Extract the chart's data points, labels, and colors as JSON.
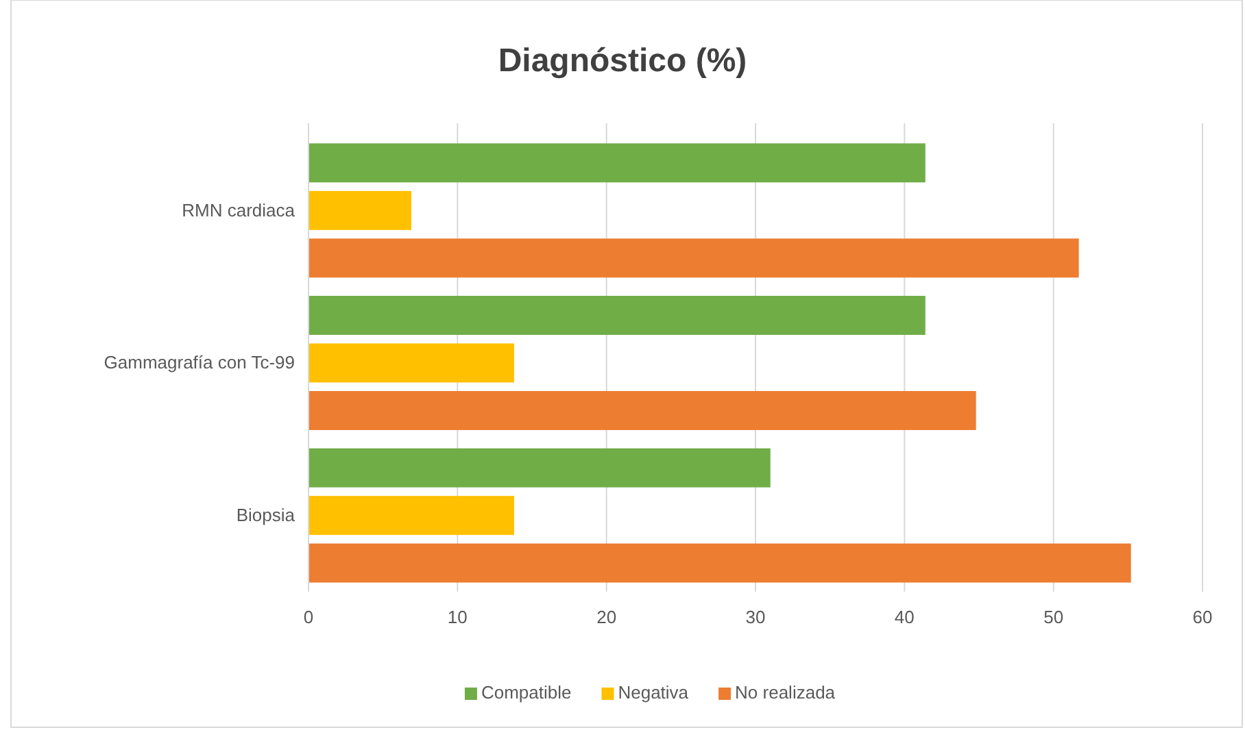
{
  "chart_data": {
    "type": "bar",
    "orientation": "horizontal",
    "title": "Diagnóstico  (%)",
    "categories": [
      "RMN cardiaca",
      "Gammagrafía con Tc-99",
      "Biopsia"
    ],
    "series": [
      {
        "name": "Compatible",
        "color": "#70ad47",
        "values": [
          41.4,
          41.4,
          31.0
        ]
      },
      {
        "name": "Negativa",
        "color": "#ffc000",
        "values": [
          6.9,
          13.8,
          13.8
        ]
      },
      {
        "name": "No realizada",
        "color": "#ed7d31",
        "values": [
          51.7,
          44.8,
          55.2
        ]
      }
    ],
    "xlim": [
      0,
      60
    ],
    "xticks": [
      0,
      10,
      20,
      30,
      40,
      50,
      60
    ],
    "grid": "x",
    "legend": "bottom"
  }
}
